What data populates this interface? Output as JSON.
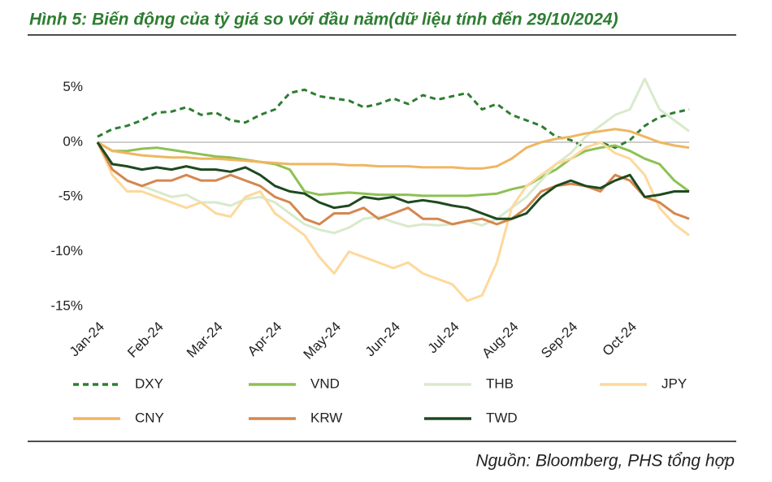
{
  "chart_data": {
    "type": "line",
    "title": "Hình 5: Biến động của tỷ giá so với đầu năm(dữ liệu tính đến 29/10/2024)",
    "source": "Nguồn: Bloomberg, PHS tổng hợp",
    "categories": [
      "Jan-24",
      null,
      null,
      null,
      "Feb-24",
      null,
      null,
      null,
      "Mar-24",
      null,
      null,
      null,
      "Apr-24",
      null,
      null,
      null,
      "May-24",
      null,
      null,
      null,
      "Jun-24",
      null,
      null,
      null,
      "Jul-24",
      null,
      null,
      null,
      "Aug-24",
      null,
      null,
      null,
      "Sep-24",
      null,
      null,
      null,
      "Oct-24",
      null,
      null,
      null,
      null
    ],
    "ylim": [
      -15.5,
      6
    ],
    "yticks": [
      {
        "value": 5,
        "label": "5%"
      },
      {
        "value": 0,
        "label": "0%"
      },
      {
        "value": -5,
        "label": "-5%"
      },
      {
        "value": -10,
        "label": "-10%"
      },
      {
        "value": -15,
        "label": "-15%"
      }
    ],
    "legend": "bottom",
    "series": [
      {
        "name": "DXY",
        "color": "#2e7d32",
        "dashed": true,
        "values": [
          0.5,
          1.2,
          1.5,
          2.0,
          2.7,
          2.8,
          3.2,
          2.5,
          2.7,
          2.0,
          1.8,
          2.5,
          3.0,
          4.5,
          4.8,
          4.2,
          4.0,
          3.8,
          3.2,
          3.5,
          4.0,
          3.5,
          4.3,
          3.9,
          4.2,
          4.5,
          3.0,
          3.5,
          2.5,
          2.0,
          1.5,
          0.5,
          0.2,
          -0.5,
          0.0,
          -0.5,
          0.2,
          1.5,
          2.3,
          2.7,
          3.0
        ]
      },
      {
        "name": "VND",
        "color": "#8dc153",
        "values": [
          0,
          -0.8,
          -0.8,
          -0.6,
          -0.5,
          -0.7,
          -0.9,
          -1.1,
          -1.3,
          -1.4,
          -1.6,
          -1.8,
          -2.0,
          -2.5,
          -4.5,
          -4.8,
          -4.7,
          -4.6,
          -4.7,
          -4.8,
          -4.8,
          -4.8,
          -4.9,
          -4.9,
          -4.9,
          -4.9,
          -4.8,
          -4.7,
          -4.3,
          -4.0,
          -3.2,
          -2.5,
          -1.5,
          -0.8,
          -0.5,
          -0.3,
          -0.8,
          -1.5,
          -2.0,
          -3.5,
          -4.5
        ]
      },
      {
        "name": "THB",
        "color": "#d8eacb",
        "values": [
          0,
          -2.5,
          -3.5,
          -4.0,
          -4.5,
          -5.0,
          -4.8,
          -5.5,
          -5.5,
          -5.8,
          -5.2,
          -5.0,
          -5.5,
          -6.5,
          -7.5,
          -8.0,
          -8.3,
          -7.8,
          -7.0,
          -6.8,
          -7.3,
          -7.7,
          -7.5,
          -7.6,
          -7.5,
          -7.2,
          -7.6,
          -7.0,
          -6.0,
          -5.0,
          -3.5,
          -2.0,
          -1.0,
          0.5,
          1.5,
          2.5,
          3.0,
          5.8,
          3.0,
          2.0,
          1.0
        ]
      },
      {
        "name": "JPY",
        "color": "#fdd99b",
        "values": [
          0,
          -3.0,
          -4.5,
          -4.5,
          -5.0,
          -5.5,
          -6.0,
          -5.5,
          -6.5,
          -6.8,
          -5.0,
          -4.5,
          -6.5,
          -7.5,
          -8.5,
          -10.5,
          -12.0,
          -10.0,
          -10.5,
          -11.0,
          -11.5,
          -11.0,
          -12.0,
          -12.5,
          -13.0,
          -14.5,
          -14.0,
          -11.0,
          -6.0,
          -4.0,
          -3.0,
          -2.0,
          -1.5,
          -0.5,
          0.0,
          -1.0,
          -1.5,
          -3.0,
          -6.0,
          -7.5,
          -8.5
        ]
      },
      {
        "name": "CNY",
        "color": "#efb661",
        "values": [
          0,
          -0.8,
          -1.0,
          -1.2,
          -1.3,
          -1.4,
          -1.4,
          -1.5,
          -1.5,
          -1.6,
          -1.7,
          -1.8,
          -1.9,
          -2.0,
          -2.0,
          -2.0,
          -2.0,
          -2.1,
          -2.1,
          -2.2,
          -2.2,
          -2.2,
          -2.3,
          -2.3,
          -2.3,
          -2.4,
          -2.4,
          -2.2,
          -1.5,
          -0.5,
          0.0,
          0.3,
          0.5,
          0.8,
          1.0,
          1.2,
          1.0,
          0.5,
          0.0,
          -0.3,
          -0.5
        ]
      },
      {
        "name": "KRW",
        "color": "#d5874f",
        "values": [
          0,
          -2.5,
          -3.5,
          -4.0,
          -3.5,
          -3.5,
          -3.0,
          -3.5,
          -3.5,
          -3.0,
          -3.5,
          -4.0,
          -5.0,
          -5.5,
          -7.0,
          -7.5,
          -6.5,
          -6.5,
          -6.0,
          -7.0,
          -6.5,
          -6.0,
          -7.0,
          -7.0,
          -7.5,
          -7.2,
          -7.0,
          -7.5,
          -7.0,
          -6.0,
          -4.5,
          -4.0,
          -3.8,
          -4.0,
          -4.5,
          -3.0,
          -3.5,
          -5.0,
          -5.5,
          -6.5,
          -7.0
        ]
      },
      {
        "name": "TWD",
        "color": "#1d4a1f",
        "values": [
          0,
          -2.0,
          -2.2,
          -2.5,
          -2.3,
          -2.5,
          -2.2,
          -2.5,
          -2.5,
          -2.7,
          -2.3,
          -3.0,
          -4.0,
          -4.5,
          -4.7,
          -5.5,
          -6.0,
          -5.8,
          -5.0,
          -5.2,
          -5.0,
          -5.5,
          -5.3,
          -5.5,
          -5.8,
          -6.0,
          -6.5,
          -7.0,
          -7.0,
          -6.5,
          -5.0,
          -4.0,
          -3.5,
          -4.0,
          -4.2,
          -3.5,
          -3.0,
          -5.0,
          -4.8,
          -4.5,
          -4.5
        ]
      }
    ]
  }
}
